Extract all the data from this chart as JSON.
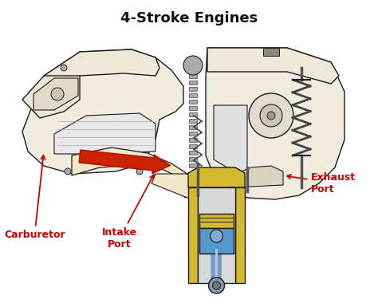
{
  "title": "4-Stroke Engines",
  "title_fontsize": 13,
  "title_fontweight": "bold",
  "bg_color": "#ffffff",
  "labels": {
    "carburetor": "Carburetor",
    "intake_port": "Intake\nPort",
    "exhaust_port": "Exhaust\nPort"
  },
  "label_color": "#cc0000",
  "label_fontsize": 9,
  "label_fontweight": "bold",
  "engine_outline_color": "#1a1a1a",
  "engine_fill_light": "#f0ece0",
  "engine_fill_cream": "#ede8d8",
  "engine_fill_yellow": "#d4b830",
  "piston_blue": "#5599cc",
  "piston_yellow": "#d4b830",
  "piston_dark_yellow": "#c8a820",
  "arrow_red": "#cc2200",
  "flow_color": "#f0e8c8",
  "spring_color": "#444444",
  "rod_color": "#7799bb",
  "dark_gray": "#555555",
  "medium_gray": "#888888",
  "light_gray": "#cccccc",
  "chain_color": "#666666"
}
